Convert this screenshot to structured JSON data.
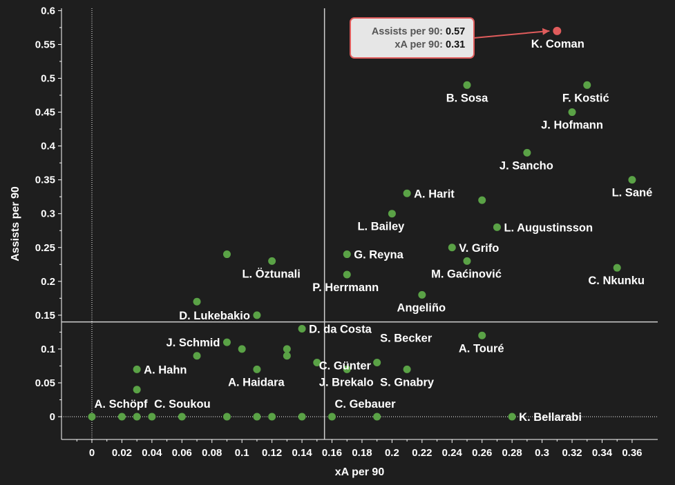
{
  "chart_data": {
    "type": "scatter",
    "xlabel": "xA per 90",
    "ylabel": "Assists per 90",
    "xlim": [
      -0.02,
      0.38
    ],
    "ylim": [
      -0.035,
      0.605
    ],
    "x_ticks": [
      0,
      0.02,
      0.04,
      0.06,
      0.08,
      0.1,
      0.12,
      0.14,
      0.16,
      0.18,
      0.2,
      0.22,
      0.24,
      0.26,
      0.28,
      0.3,
      0.32,
      0.34,
      0.36
    ],
    "x_tick_labels": [
      "0",
      "0.02",
      "0.04",
      "0.06",
      "0.08",
      "0.1",
      "0.12",
      "0.14",
      "0.16",
      "0.18",
      "0.2",
      "0.22",
      "0.24",
      "0.26",
      "0.28",
      "0.3",
      "0.32",
      "0.34",
      "0.36"
    ],
    "y_ticks": [
      0,
      0.05,
      0.1,
      0.15,
      0.2,
      0.25,
      0.3,
      0.35,
      0.4,
      0.45,
      0.5,
      0.55,
      0.6
    ],
    "y_tick_labels": [
      "0",
      "0.05",
      "0.1",
      "0.15",
      "0.2",
      "0.25",
      "0.3",
      "0.35",
      "0.4",
      "0.45",
      "0.5",
      "0.55",
      "0.6"
    ],
    "reference_lines": {
      "x_mean": 0.155,
      "y_mean": 0.14
    },
    "highlight": {
      "name": "K. Coman",
      "x": 0.31,
      "y": 0.57,
      "color": "#e05c5c",
      "tooltip": [
        {
          "label": "Assists per 90:",
          "value": "0.57"
        },
        {
          "label": "xA per 90:",
          "value": "0.31"
        }
      ]
    },
    "point_color": "#5aa246",
    "points": [
      {
        "x": 0.25,
        "y": 0.49,
        "label": "B. Sosa"
      },
      {
        "x": 0.33,
        "y": 0.49,
        "label": "F. Kostić"
      },
      {
        "x": 0.32,
        "y": 0.45,
        "label": "J. Hofmann"
      },
      {
        "x": 0.29,
        "y": 0.39,
        "label": "J. Sancho"
      },
      {
        "x": 0.36,
        "y": 0.35,
        "label": "L. Sané"
      },
      {
        "x": 0.21,
        "y": 0.33,
        "label": "A. Harit"
      },
      {
        "x": 0.26,
        "y": 0.32,
        "label": ""
      },
      {
        "x": 0.2,
        "y": 0.3,
        "label": "L. Bailey"
      },
      {
        "x": 0.27,
        "y": 0.28,
        "label": "L. Augustinsson"
      },
      {
        "x": 0.24,
        "y": 0.25,
        "label": "V. Grifo"
      },
      {
        "x": 0.17,
        "y": 0.24,
        "label": "G. Reyna"
      },
      {
        "x": 0.09,
        "y": 0.24,
        "label": ""
      },
      {
        "x": 0.12,
        "y": 0.23,
        "label": "L. Öztunali"
      },
      {
        "x": 0.25,
        "y": 0.23,
        "label": "M. Gaćinović"
      },
      {
        "x": 0.35,
        "y": 0.22,
        "label": "C. Nkunku"
      },
      {
        "x": 0.17,
        "y": 0.21,
        "label": "P. Herrmann"
      },
      {
        "x": 0.22,
        "y": 0.18,
        "label": "Angeliño"
      },
      {
        "x": 0.07,
        "y": 0.17,
        "label": ""
      },
      {
        "x": 0.11,
        "y": 0.15,
        "label": "D. Lukebakio"
      },
      {
        "x": 0.14,
        "y": 0.13,
        "label": "D. da Costa"
      },
      {
        "x": 0.26,
        "y": 0.12,
        "label": "A. Touré"
      },
      {
        "x": 0.09,
        "y": 0.11,
        "label": "J. Schmid"
      },
      {
        "x": 0.1,
        "y": 0.1,
        "label": ""
      },
      {
        "x": 0.13,
        "y": 0.1,
        "label": ""
      },
      {
        "x": 0.13,
        "y": 0.09,
        "label": "C. Günter"
      },
      {
        "x": 0.07,
        "y": 0.09,
        "label": ""
      },
      {
        "x": 0.15,
        "y": 0.08,
        "label": ""
      },
      {
        "x": 0.19,
        "y": 0.08,
        "label": "S. Becker"
      },
      {
        "x": 0.03,
        "y": 0.07,
        "label": "A. Hahn"
      },
      {
        "x": 0.11,
        "y": 0.07,
        "label": "A. Haidara"
      },
      {
        "x": 0.17,
        "y": 0.07,
        "label": "J. Brekalo"
      },
      {
        "x": 0.21,
        "y": 0.07,
        "label": "S. Gnabry"
      },
      {
        "x": 0.03,
        "y": 0.04,
        "label": ""
      },
      {
        "x": 0.0,
        "y": 0.0,
        "label": "A. Schöpf"
      },
      {
        "x": 0.02,
        "y": 0.0,
        "label": ""
      },
      {
        "x": 0.03,
        "y": 0.0,
        "label": ""
      },
      {
        "x": 0.04,
        "y": 0.0,
        "label": "C. Soukou"
      },
      {
        "x": 0.06,
        "y": 0.0,
        "label": ""
      },
      {
        "x": 0.09,
        "y": 0.0,
        "label": ""
      },
      {
        "x": 0.11,
        "y": 0.0,
        "label": ""
      },
      {
        "x": 0.12,
        "y": 0.0,
        "label": ""
      },
      {
        "x": 0.14,
        "y": 0.0,
        "label": ""
      },
      {
        "x": 0.16,
        "y": 0.0,
        "label": "C. Gebauer"
      },
      {
        "x": 0.19,
        "y": 0.0,
        "label": ""
      },
      {
        "x": 0.28,
        "y": 0.0,
        "label": "K. Bellarabi"
      }
    ]
  }
}
